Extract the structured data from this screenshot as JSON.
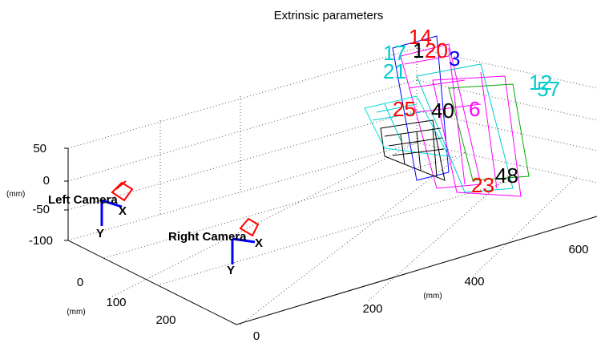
{
  "title": "Extrinsic parameters",
  "axes": {
    "z_ticks": [
      "50",
      "0",
      "-50",
      "-100"
    ],
    "x_ticks": [
      "0",
      "100",
      "200"
    ],
    "y_ticks": [
      "0",
      "200",
      "400",
      "600"
    ],
    "z_unit": "(mm)",
    "x_unit": "(mm)",
    "y_unit": "(mm)"
  },
  "cameras": [
    {
      "label": "Left Camera",
      "x_axis": "X",
      "y_axis": "Y"
    },
    {
      "label": "Right Camera",
      "x_axis": "X",
      "y_axis": "Y"
    }
  ],
  "boards": [
    {
      "label": "14",
      "color": "#ff0000"
    },
    {
      "label": "1",
      "color": "#000000"
    },
    {
      "label": "17",
      "color": "#00cccc"
    },
    {
      "label": "20",
      "color": "#ff0000"
    },
    {
      "label": "21",
      "color": "#00cccc"
    },
    {
      "label": "3",
      "color": "#0000ff"
    },
    {
      "label": "12",
      "color": "#00cccc"
    },
    {
      "label": "57",
      "color": "#00cccc"
    },
    {
      "label": "25",
      "color": "#ff0000"
    },
    {
      "label": "40",
      "color": "#000000"
    },
    {
      "label": "6",
      "color": "#ff00ff"
    },
    {
      "label": "48",
      "color": "#000000"
    },
    {
      "label": "23",
      "color": "#ff0000"
    }
  ]
}
